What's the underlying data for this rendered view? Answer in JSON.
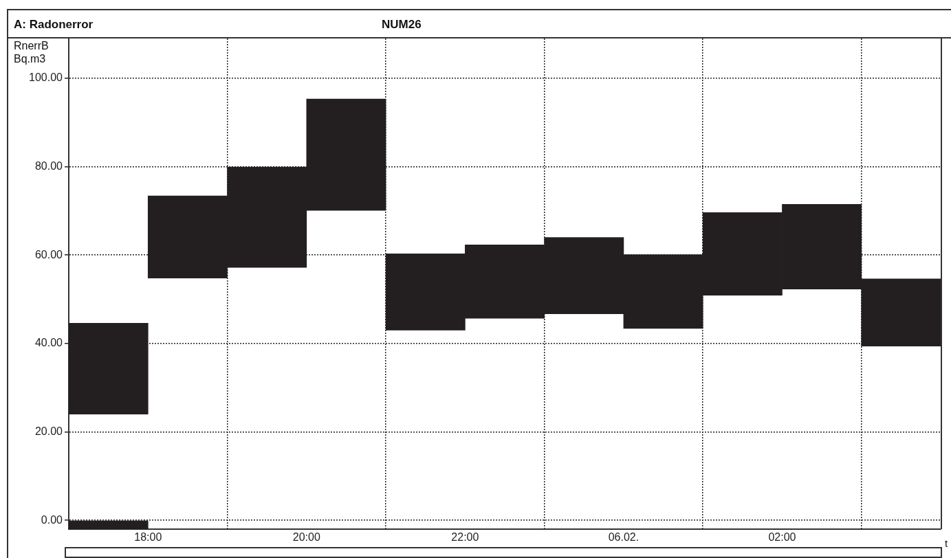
{
  "chart_data": {
    "type": "bar",
    "title": "A: Radonerror",
    "subtitle": "NUM26",
    "ylabel": "RnerrB\nBq.m3",
    "annotations": [
      "t"
    ],
    "series": [
      {
        "color": "#231f20",
        "x": [
          "--02-05T17:30",
          "--02-05T18:30",
          "--02-05T19:30",
          "--02-05T20:30",
          "--02-05T21:30",
          "--02-05T22:30",
          "--02-05T23:30",
          "--02-06T00:30",
          "--02-06T01:30",
          "--02-06T02:30",
          "--02-06T03:30"
        ],
        "base": [
          24.0,
          54.8,
          57.2,
          70.1,
          43.0,
          45.7,
          46.7,
          43.4,
          50.9,
          52.3,
          39.4
        ],
        "values": [
          20.6,
          18.6,
          22.7,
          25.2,
          17.3,
          16.6,
          17.3,
          16.7,
          18.7,
          19.2,
          15.2
        ]
      },
      {
        "color": "#231f20",
        "x": [
          "--02-05T17:30"
        ],
        "base": [
          -2
        ],
        "values": [
          2
        ]
      }
    ],
    "xlim": [
      "--02-05T17:00",
      "--02-06T04:00"
    ],
    "xticks": [
      {
        "value": "--02-05T18:00",
        "label": "18:00"
      },
      {
        "value": "--02-05T20:00",
        "label": "20:00"
      },
      {
        "value": "--02-05T22:00",
        "label": "22:00"
      },
      {
        "value": "--02-06T00:00",
        "label": "06.02."
      },
      {
        "value": "--02-06T02:00",
        "label": "02:00"
      }
    ],
    "ylim": [
      -2,
      109
    ],
    "yticks": [
      {
        "value": 0,
        "label": "0.00"
      },
      {
        "value": 20,
        "label": "20.00"
      },
      {
        "value": 40,
        "label": "40.00"
      },
      {
        "value": 60,
        "label": "60.00"
      },
      {
        "value": 80,
        "label": "80.00"
      },
      {
        "value": 100,
        "label": "100.00"
      }
    ],
    "grid": true,
    "legend": false
  }
}
